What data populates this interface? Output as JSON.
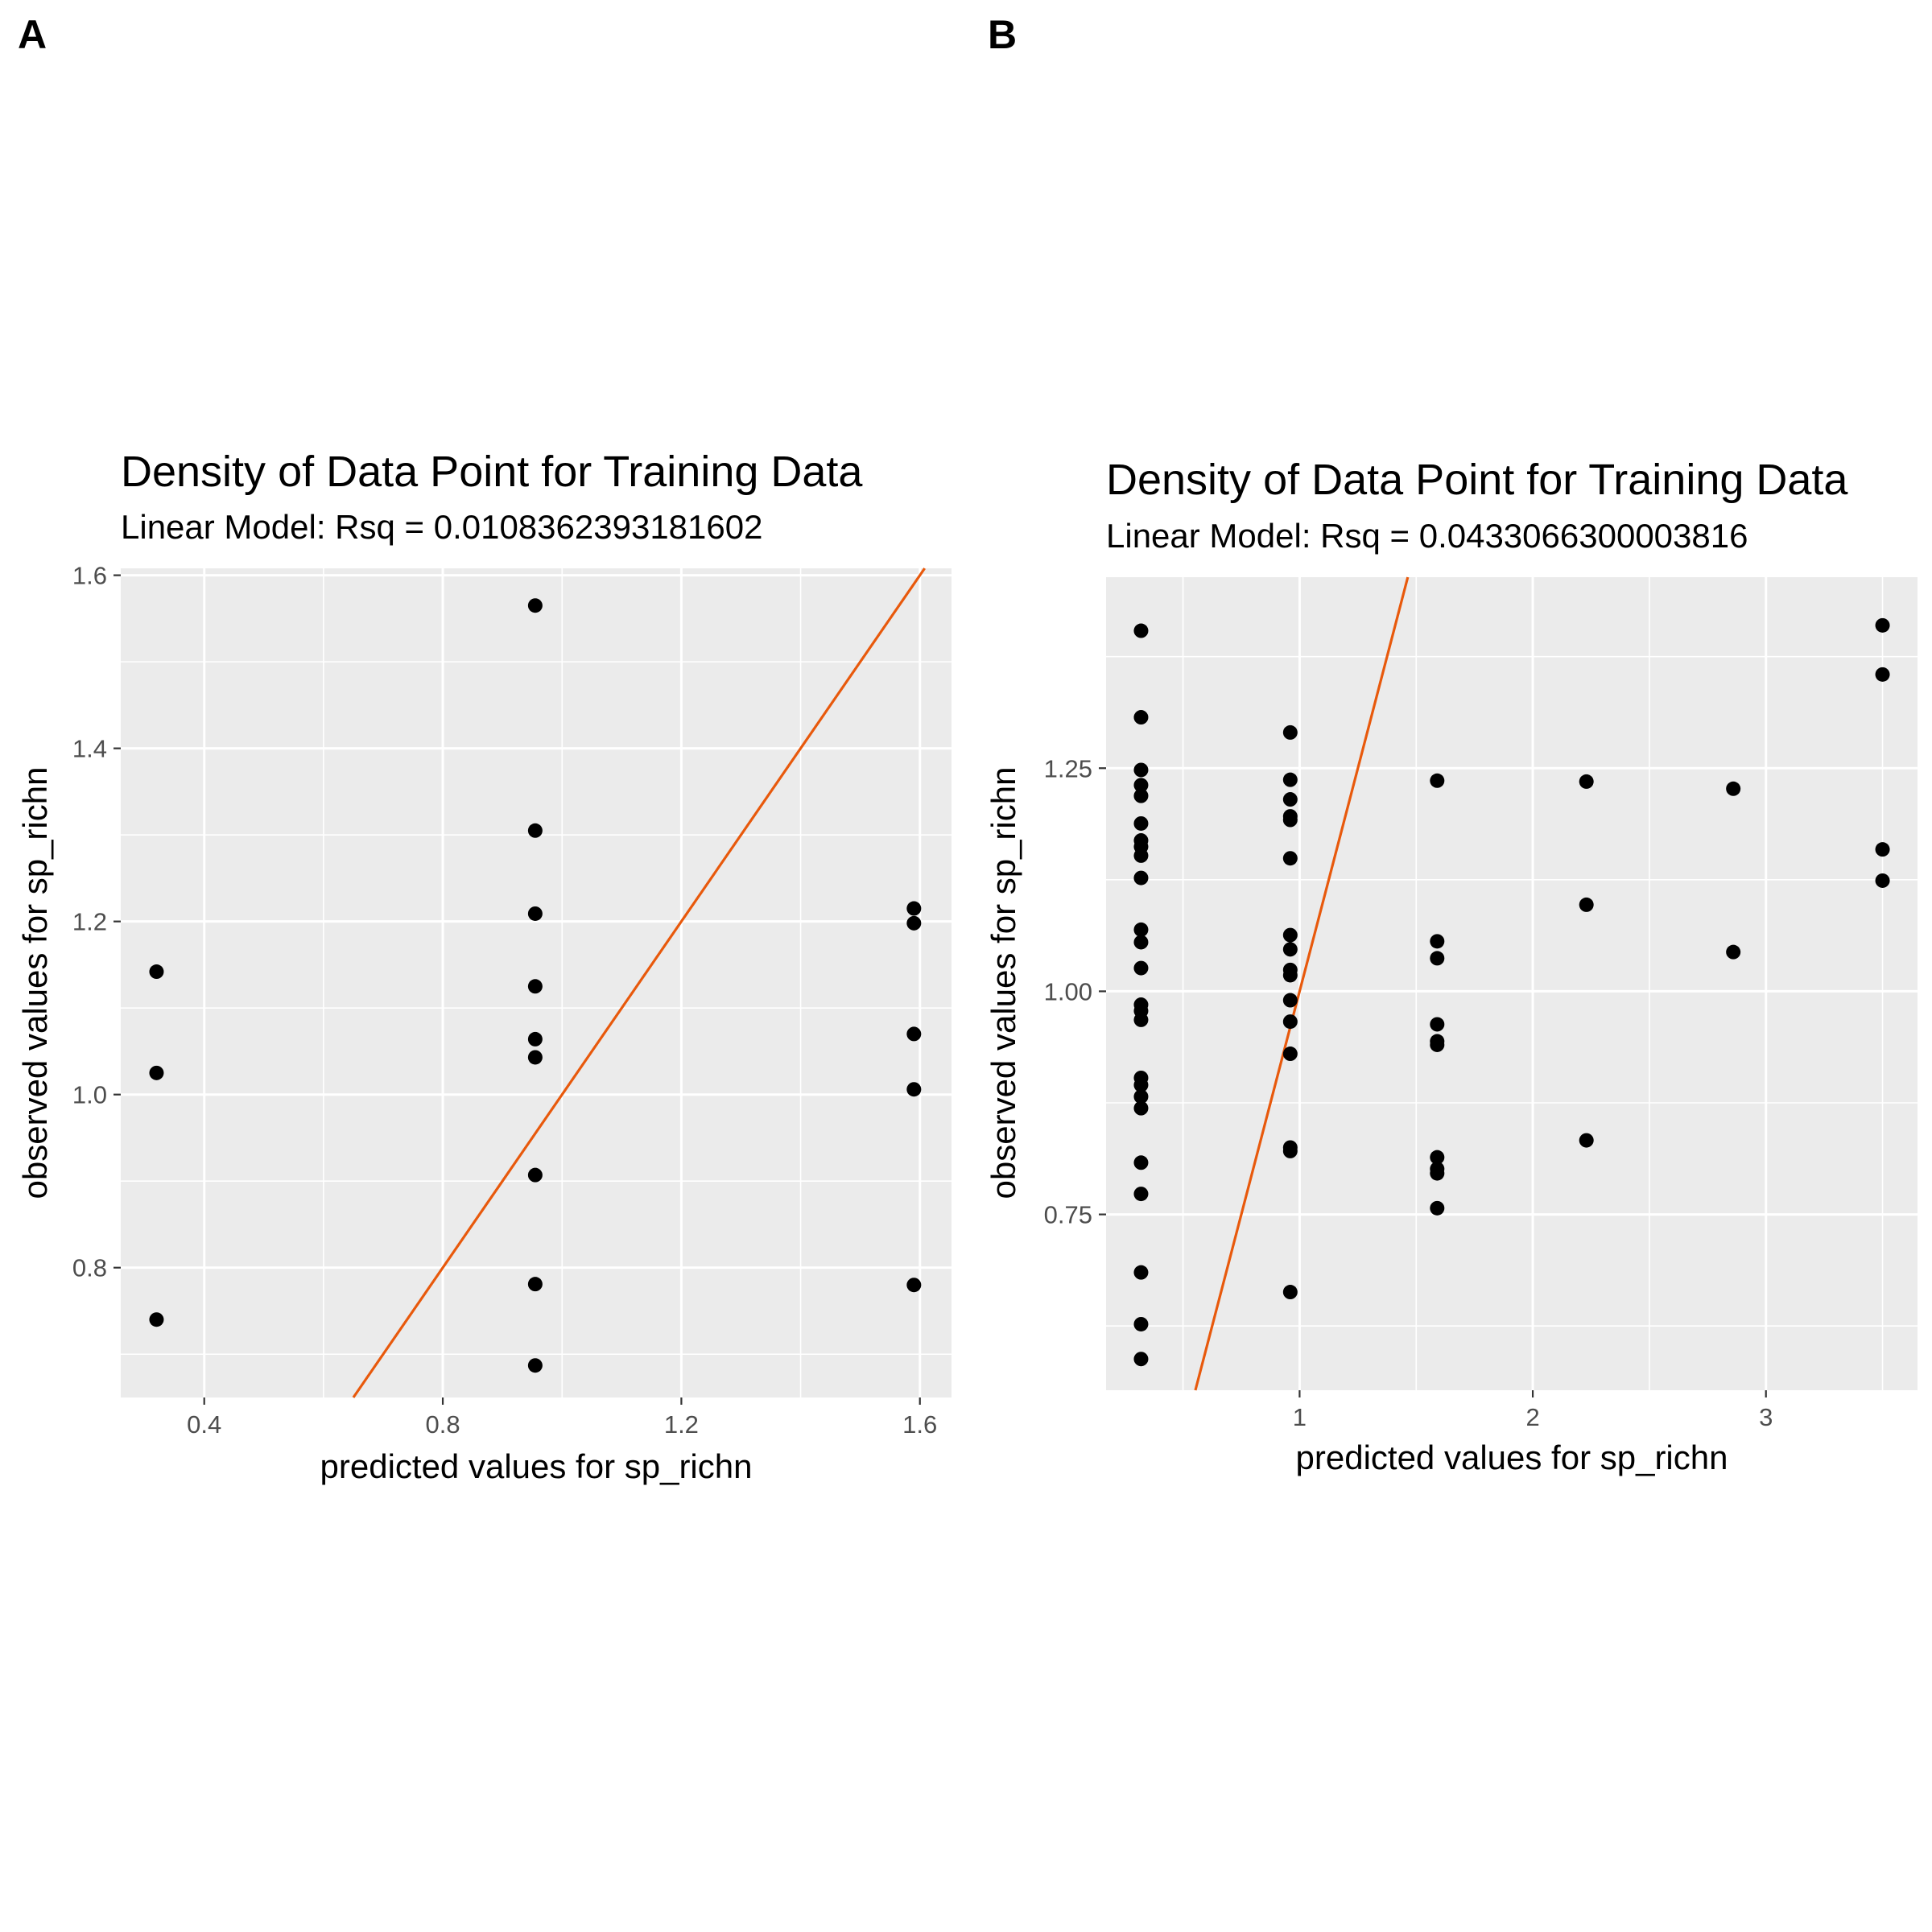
{
  "chart_data": [
    {
      "panel_tag": "A",
      "type": "scatter",
      "title": "Density of Data Point for Training Data",
      "subtitle": "Linear Model: Rsq = 0.0108362393181602",
      "xlabel": "predicted values for sp_richn",
      "ylabel": "observed values for sp_richn",
      "xlim": [
        0.26,
        1.653
      ],
      "ylim": [
        0.65,
        1.608
      ],
      "x_ticks": [
        0.4,
        0.8,
        1.2,
        1.6
      ],
      "x_tick_labels": [
        "0.4",
        "0.8",
        "1.2",
        "1.6"
      ],
      "y_ticks": [
        0.8,
        1.0,
        1.2,
        1.4,
        1.6
      ],
      "y_tick_labels": [
        "0.8",
        "1.0",
        "1.2",
        "1.4",
        "1.6"
      ],
      "grid": true,
      "reference_line": {
        "slope": 1,
        "intercept": 0,
        "color": "#e8590c"
      },
      "point_color": "#000000",
      "points": [
        {
          "x": 0.32,
          "y": 1.142
        },
        {
          "x": 0.32,
          "y": 1.025
        },
        {
          "x": 0.32,
          "y": 0.74
        },
        {
          "x": 0.955,
          "y": 1.565
        },
        {
          "x": 0.955,
          "y": 1.305
        },
        {
          "x": 0.955,
          "y": 1.209
        },
        {
          "x": 0.955,
          "y": 1.125
        },
        {
          "x": 0.955,
          "y": 1.064
        },
        {
          "x": 0.955,
          "y": 1.043
        },
        {
          "x": 0.955,
          "y": 0.907
        },
        {
          "x": 0.955,
          "y": 0.781
        },
        {
          "x": 0.955,
          "y": 0.687
        },
        {
          "x": 1.59,
          "y": 1.215
        },
        {
          "x": 1.59,
          "y": 1.198
        },
        {
          "x": 1.59,
          "y": 1.07
        },
        {
          "x": 1.59,
          "y": 1.006
        },
        {
          "x": 1.59,
          "y": 0.78
        }
      ]
    },
    {
      "panel_tag": "B",
      "type": "scatter",
      "title": "Density of Data Point for Training Data",
      "subtitle": "Linear Model: Rsq = 0.0433066300003816",
      "xlabel": "predicted values for sp_richn",
      "ylabel": "observed values for sp_richn",
      "xlim": [
        0.17,
        3.65
      ],
      "ylim": [
        0.553,
        1.464
      ],
      "x_ticks": [
        1,
        2,
        3
      ],
      "x_tick_labels": [
        "1",
        "2",
        "3"
      ],
      "y_ticks": [
        0.75,
        1.0,
        1.25
      ],
      "y_tick_labels": [
        "0.75",
        "1.00",
        "1.25"
      ],
      "grid": true,
      "reference_line": {
        "slope": 1,
        "intercept": 0,
        "color": "#e8590c"
      },
      "point_color": "#000000",
      "points": [
        {
          "x": 0.32,
          "y": 1.404
        },
        {
          "x": 0.32,
          "y": 1.307
        },
        {
          "x": 0.32,
          "y": 1.248
        },
        {
          "x": 0.32,
          "y": 1.231
        },
        {
          "x": 0.32,
          "y": 1.219
        },
        {
          "x": 0.32,
          "y": 1.188
        },
        {
          "x": 0.32,
          "y": 1.169
        },
        {
          "x": 0.32,
          "y": 1.162
        },
        {
          "x": 0.32,
          "y": 1.152
        },
        {
          "x": 0.32,
          "y": 1.127
        },
        {
          "x": 0.32,
          "y": 1.069
        },
        {
          "x": 0.32,
          "y": 1.055
        },
        {
          "x": 0.32,
          "y": 1.026
        },
        {
          "x": 0.32,
          "y": 0.985
        },
        {
          "x": 0.32,
          "y": 0.978
        },
        {
          "x": 0.32,
          "y": 0.968
        },
        {
          "x": 0.32,
          "y": 0.903
        },
        {
          "x": 0.32,
          "y": 0.895
        },
        {
          "x": 0.32,
          "y": 0.882
        },
        {
          "x": 0.32,
          "y": 0.869
        },
        {
          "x": 0.32,
          "y": 0.808
        },
        {
          "x": 0.32,
          "y": 0.773
        },
        {
          "x": 0.32,
          "y": 0.685
        },
        {
          "x": 0.32,
          "y": 0.627
        },
        {
          "x": 0.32,
          "y": 0.588
        },
        {
          "x": 0.96,
          "y": 1.29
        },
        {
          "x": 0.96,
          "y": 1.237
        },
        {
          "x": 0.96,
          "y": 1.215
        },
        {
          "x": 0.96,
          "y": 1.196
        },
        {
          "x": 0.96,
          "y": 1.192
        },
        {
          "x": 0.96,
          "y": 1.149
        },
        {
          "x": 0.96,
          "y": 1.063
        },
        {
          "x": 0.96,
          "y": 1.047
        },
        {
          "x": 0.96,
          "y": 1.024
        },
        {
          "x": 0.96,
          "y": 1.018
        },
        {
          "x": 0.96,
          "y": 0.99
        },
        {
          "x": 0.96,
          "y": 0.966
        },
        {
          "x": 0.96,
          "y": 0.93
        },
        {
          "x": 0.96,
          "y": 0.825
        },
        {
          "x": 0.96,
          "y": 0.821
        },
        {
          "x": 0.96,
          "y": 0.663
        },
        {
          "x": 1.59,
          "y": 1.236
        },
        {
          "x": 1.59,
          "y": 1.056
        },
        {
          "x": 1.59,
          "y": 1.037
        },
        {
          "x": 1.59,
          "y": 0.963
        },
        {
          "x": 1.59,
          "y": 0.944
        },
        {
          "x": 1.59,
          "y": 0.94
        },
        {
          "x": 1.59,
          "y": 0.814
        },
        {
          "x": 1.59,
          "y": 0.801
        },
        {
          "x": 1.59,
          "y": 0.796
        },
        {
          "x": 1.59,
          "y": 0.757
        },
        {
          "x": 2.23,
          "y": 1.235
        },
        {
          "x": 2.23,
          "y": 1.097
        },
        {
          "x": 2.23,
          "y": 0.833
        },
        {
          "x": 2.86,
          "y": 1.227
        },
        {
          "x": 2.86,
          "y": 1.044
        },
        {
          "x": 3.5,
          "y": 1.41
        },
        {
          "x": 3.5,
          "y": 1.355
        },
        {
          "x": 3.5,
          "y": 1.159
        },
        {
          "x": 3.5,
          "y": 1.124
        }
      ]
    }
  ]
}
